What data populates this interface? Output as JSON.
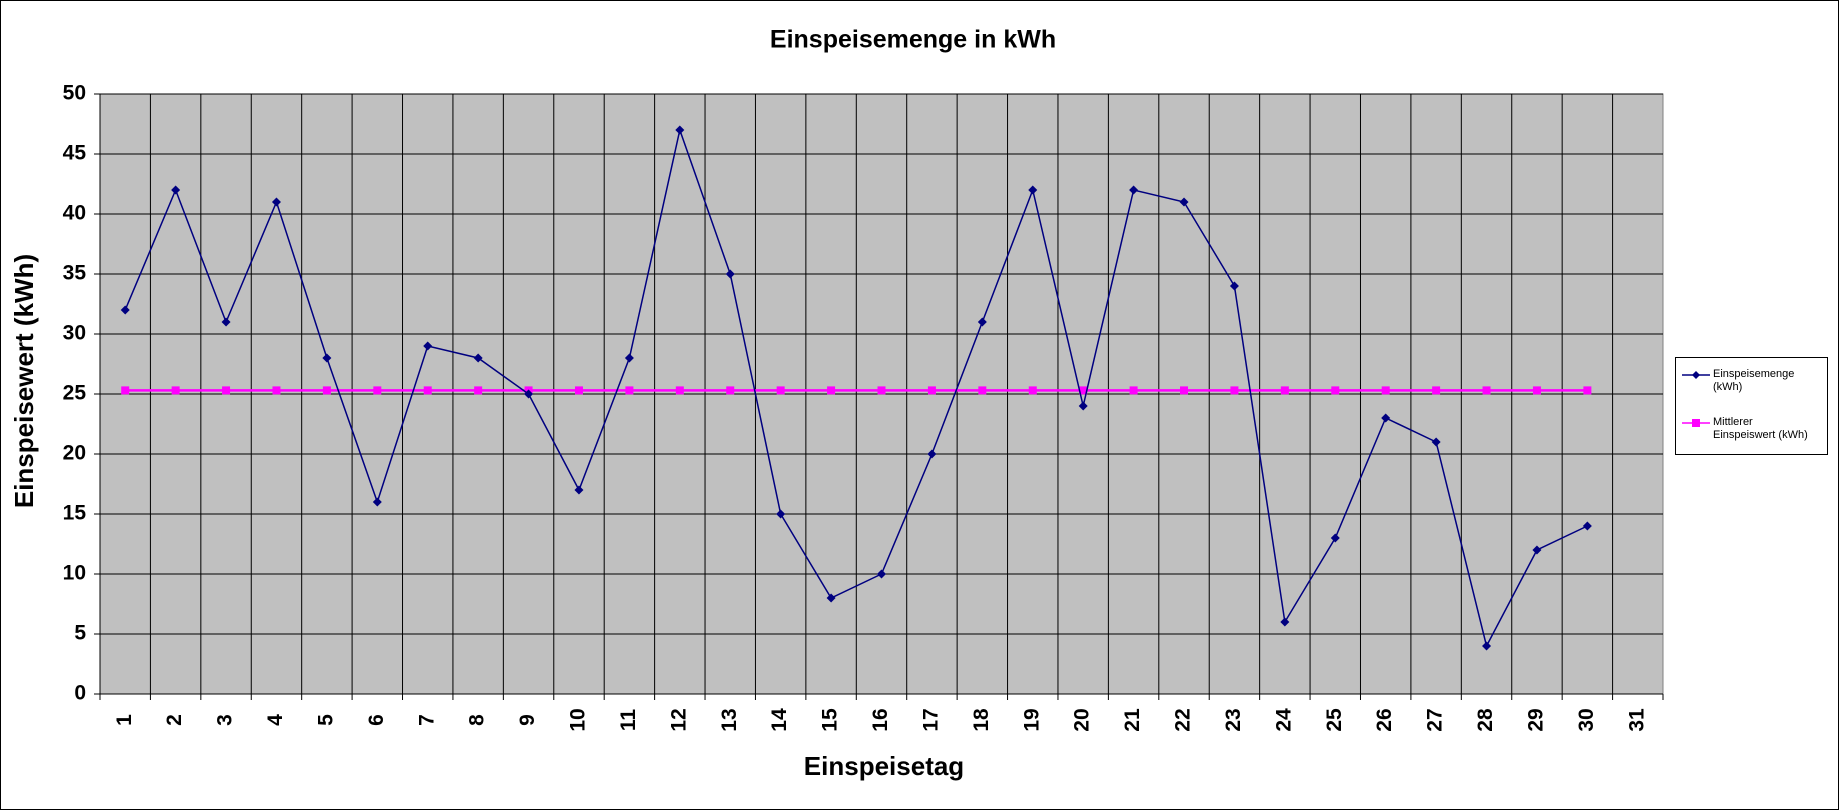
{
  "chart_data": {
    "type": "line",
    "title": "Einspeisemenge in kWh",
    "xlabel": "Einspeisetag",
    "ylabel": "Einspeisewert  (kWh)",
    "categories": [
      "1",
      "2",
      "3",
      "4",
      "5",
      "6",
      "7",
      "8",
      "9",
      "10",
      "11",
      "12",
      "13",
      "14",
      "15",
      "16",
      "17",
      "18",
      "19",
      "20",
      "21",
      "22",
      "23",
      "24",
      "25",
      "26",
      "27",
      "28",
      "29",
      "30",
      "31"
    ],
    "series": [
      {
        "name": "Einspeisemenge (kWh)",
        "color": "#000080",
        "marker": "diamond",
        "values": [
          32,
          42,
          31,
          41,
          28,
          16,
          29,
          28,
          25,
          17,
          28,
          47,
          35,
          15,
          8,
          10,
          20,
          31,
          42,
          24,
          42,
          41,
          34,
          6,
          13,
          23,
          21,
          4,
          12,
          14,
          null
        ]
      },
      {
        "name": "Mittlerer Einspeiswert (kWh)",
        "color": "#ff00ff",
        "marker": "square",
        "values": [
          25.3,
          25.3,
          25.3,
          25.3,
          25.3,
          25.3,
          25.3,
          25.3,
          25.3,
          25.3,
          25.3,
          25.3,
          25.3,
          25.3,
          25.3,
          25.3,
          25.3,
          25.3,
          25.3,
          25.3,
          25.3,
          25.3,
          25.3,
          25.3,
          25.3,
          25.3,
          25.3,
          25.3,
          25.3,
          25.3,
          null
        ]
      }
    ],
    "ylim": [
      0,
      50
    ],
    "yticks": [
      0,
      5,
      10,
      15,
      20,
      25,
      30,
      35,
      40,
      45,
      50
    ],
    "grid": true,
    "legend": "right"
  }
}
